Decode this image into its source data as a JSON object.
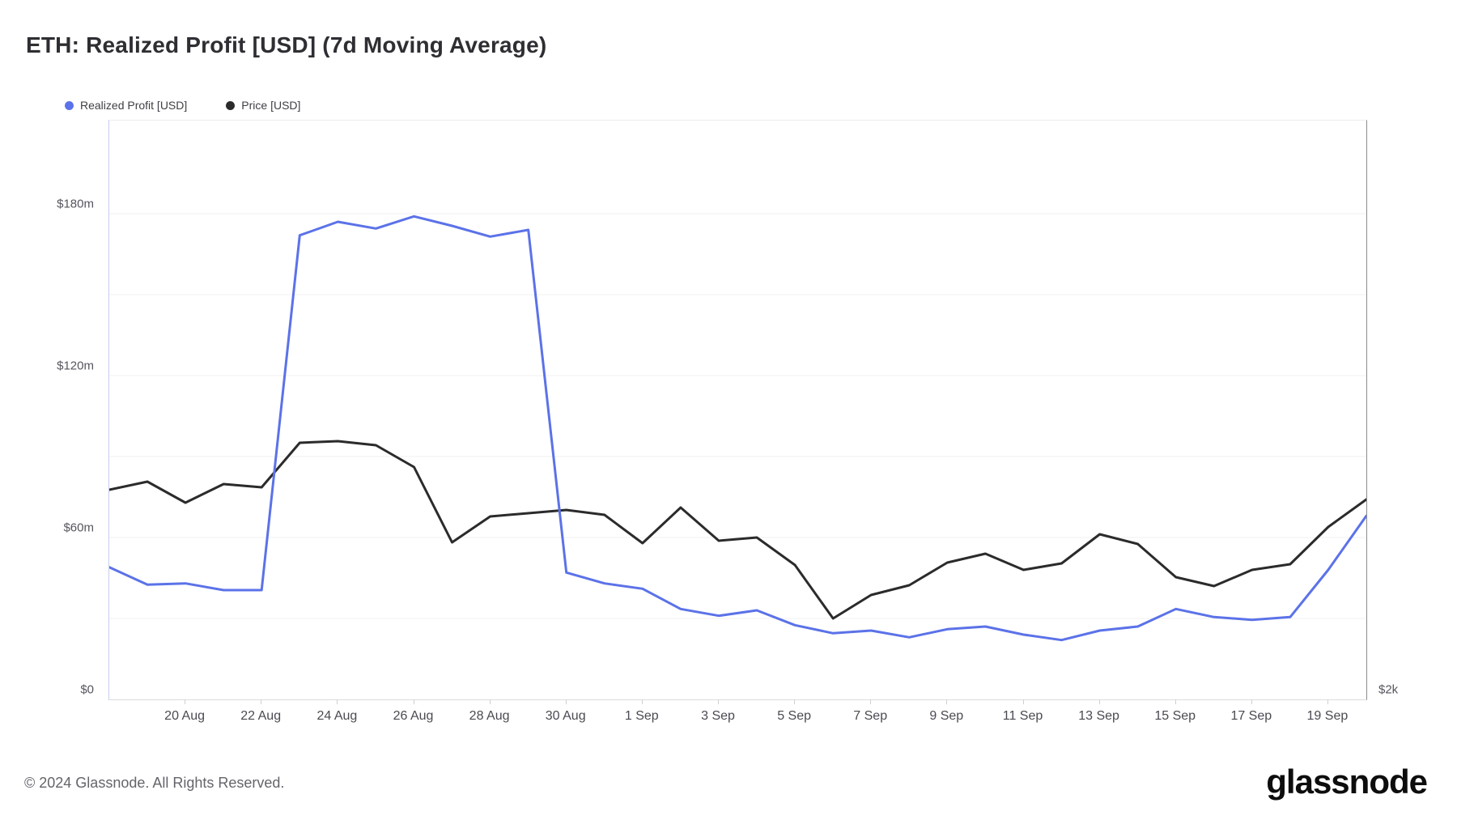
{
  "title": "ETH: Realized Profit [USD] (7d Moving Average)",
  "legend": [
    {
      "label": "Realized Profit [USD]",
      "color": "#5b72e8",
      "icon": "legend-dot-blue"
    },
    {
      "label": "Price [USD]",
      "color": "#2b2b2b",
      "icon": "legend-dot-black"
    }
  ],
  "footer": {
    "copyright": "© 2024 Glassnode. All Rights Reserved.",
    "brand": "glassnode"
  },
  "chart_data": {
    "type": "line",
    "title": "ETH: Realized Profit [USD] (7d Moving Average)",
    "x": [
      "18 Aug",
      "19 Aug",
      "20 Aug",
      "21 Aug",
      "22 Aug",
      "23 Aug",
      "24 Aug",
      "25 Aug",
      "26 Aug",
      "27 Aug",
      "28 Aug",
      "29 Aug",
      "30 Aug",
      "31 Aug",
      "1 Sep",
      "2 Sep",
      "3 Sep",
      "4 Sep",
      "5 Sep",
      "6 Sep",
      "7 Sep",
      "8 Sep",
      "9 Sep",
      "10 Sep",
      "11 Sep",
      "12 Sep",
      "13 Sep",
      "14 Sep",
      "15 Sep",
      "16 Sep",
      "17 Sep",
      "18 Sep",
      "19 Sep",
      "20 Sep"
    ],
    "series": [
      {
        "name": "Realized Profit [USD]",
        "color": "#5b72e8",
        "axis": "left",
        "unit": "USD millions",
        "values": [
          49,
          42.5,
          43,
          40.5,
          40.5,
          172,
          177,
          174.5,
          179,
          175.5,
          171.5,
          174,
          47,
          43,
          41,
          33.5,
          31,
          33,
          27.5,
          24.5,
          25.5,
          23,
          26,
          27,
          24,
          22,
          25.5,
          27,
          33.5,
          30.5,
          29.5,
          30.5,
          48,
          68
        ]
      },
      {
        "name": "Price [USD]",
        "color": "#2b2b2b",
        "axis": "right",
        "unit": "USD",
        "values": [
          2518,
          2538,
          2486,
          2532,
          2524,
          2634,
          2638,
          2628,
          2574,
          2388,
          2452,
          2460,
          2468,
          2456,
          2386,
          2474,
          2392,
          2400,
          2332,
          2200,
          2258,
          2282,
          2338,
          2360,
          2320,
          2336,
          2408,
          2384,
          2302,
          2280,
          2320,
          2334,
          2426,
          2494
        ]
      }
    ],
    "y_axis_left": {
      "tick_labels": [
        "$180m",
        "$120m",
        "$60m",
        "$0"
      ],
      "tick_values": [
        180,
        120,
        60,
        0
      ],
      "gridline_values": [
        180,
        150,
        120,
        90,
        60,
        30
      ],
      "range": [
        0,
        214.5
      ]
    },
    "y_axis_right": {
      "tick_labels": [
        "$2k"
      ],
      "tick_values": [
        2000
      ],
      "range": [
        2000,
        3430
      ]
    },
    "x_tick_labels": [
      "20 Aug",
      "22 Aug",
      "24 Aug",
      "26 Aug",
      "28 Aug",
      "30 Aug",
      "1 Sep",
      "3 Sep",
      "5 Sep",
      "7 Sep",
      "9 Sep",
      "11 Sep",
      "13 Sep",
      "15 Sep",
      "17 Sep",
      "19 Sep"
    ],
    "x_tick_indices": [
      2,
      4,
      6,
      8,
      10,
      12,
      14,
      16,
      18,
      20,
      22,
      24,
      26,
      28,
      30,
      32
    ],
    "grid": "horizontal",
    "legend_position": "top-left"
  }
}
